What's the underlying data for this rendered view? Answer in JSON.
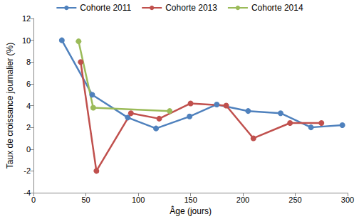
{
  "chart_data": {
    "type": "line",
    "x_label": "Âge (jours)",
    "y_label": "Taux de croissance journalier (%)",
    "xlim": [
      0,
      300
    ],
    "xticks": [
      0,
      50,
      100,
      150,
      200,
      250,
      300
    ],
    "ylim": [
      -4,
      12
    ],
    "yticks": [
      -4,
      -2,
      0,
      2,
      4,
      6,
      8,
      10,
      12
    ],
    "grid": false,
    "legend": "top",
    "marker": "circle",
    "series": [
      {
        "name": "Cohorte 2011",
        "color": "#4f81bd",
        "x": [
          27,
          56,
          90,
          117,
          149,
          175,
          205,
          236,
          265,
          295
        ],
        "values": [
          10.0,
          5.0,
          2.9,
          1.9,
          3.0,
          4.1,
          3.5,
          3.3,
          2.0,
          2.2
        ]
      },
      {
        "name": "Cohorte 2013",
        "color": "#c0504d",
        "x": [
          45,
          60,
          93,
          120,
          150,
          184,
          210,
          245,
          275
        ],
        "values": [
          8.0,
          -2.0,
          3.3,
          2.8,
          4.2,
          4.0,
          1.0,
          2.4,
          2.4
        ]
      },
      {
        "name": "Cohorte 2014",
        "color": "#9bbb59",
        "x": [
          43,
          57,
          130
        ],
        "values": [
          9.9,
          3.8,
          3.5
        ]
      }
    ]
  }
}
